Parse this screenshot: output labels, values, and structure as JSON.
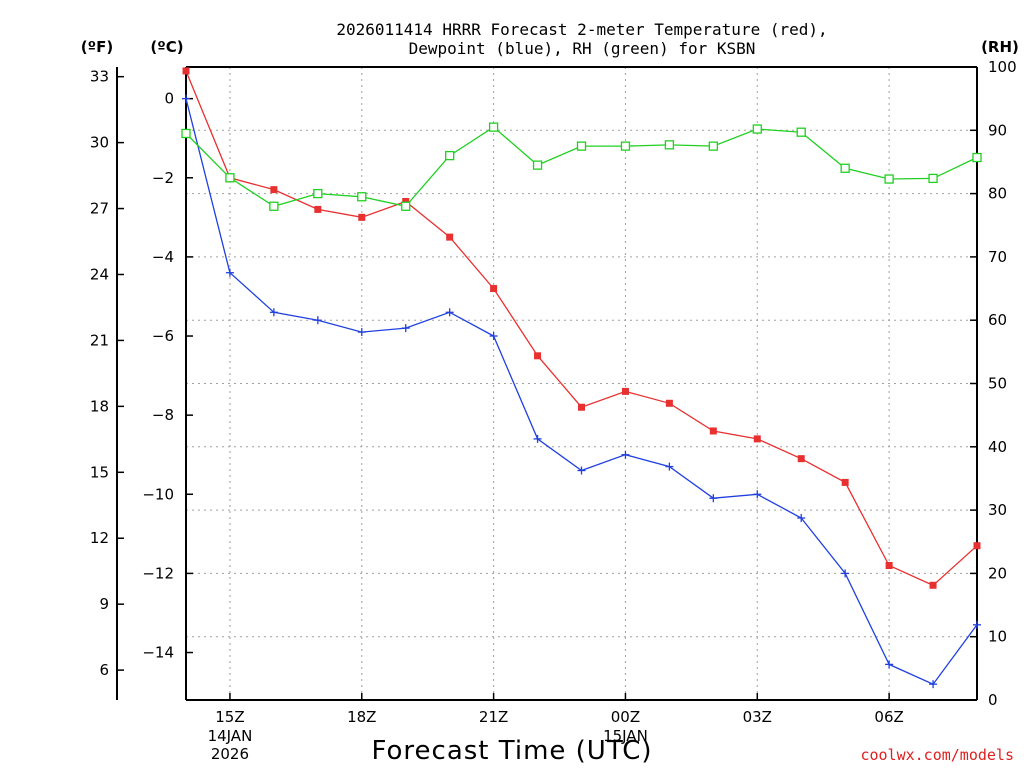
{
  "chart_data": {
    "type": "line",
    "title_lines": [
      "2026011414 HRRR Forecast 2-meter Temperature (red),",
      "Dewpoint (blue), RH (green) for KSBN"
    ],
    "unit_labels": {
      "fahrenheit": "(ºF)",
      "celsius": "(ºC)",
      "rh": "(RH)"
    },
    "xlabel": "Forecast Time (UTC)",
    "credit": "coolwx.com/models",
    "x_hours": [
      14,
      15,
      16,
      17,
      18,
      19,
      20,
      21,
      22,
      23,
      24,
      25,
      26,
      27,
      28,
      29,
      30,
      31,
      32
    ],
    "xlim": [
      14,
      32
    ],
    "x_ticks": [
      {
        "hour": 15,
        "label": "15Z",
        "date1": "14JAN",
        "date2": "2026"
      },
      {
        "hour": 18,
        "label": "18Z"
      },
      {
        "hour": 21,
        "label": "21Z"
      },
      {
        "hour": 24,
        "label": "00Z",
        "date1": "15JAN"
      },
      {
        "hour": 27,
        "label": "03Z"
      },
      {
        "hour": 30,
        "label": "06Z"
      }
    ],
    "celsius_axis": {
      "range": [
        -15.2,
        0.8
      ],
      "ticks": [
        0,
        -2,
        -4,
        -6,
        -8,
        -10,
        -12,
        -14
      ],
      "tick_labels": [
        "0",
        "−2",
        "−4",
        "−6",
        "−8",
        "−10",
        "−12",
        "−14"
      ]
    },
    "fahrenheit_axis": {
      "ticks": [
        33,
        30,
        27,
        24,
        21,
        18,
        15,
        12,
        9,
        6
      ],
      "tick_labels": [
        "33",
        "30",
        "27",
        "24",
        "21",
        "18",
        "15",
        "12",
        "9",
        "6"
      ]
    },
    "rh_axis": {
      "range": [
        0,
        100
      ],
      "ticks": [
        0,
        10,
        20,
        30,
        40,
        50,
        60,
        70,
        80,
        90,
        100
      ],
      "tick_labels": [
        "0",
        "10",
        "20",
        "30",
        "40",
        "50",
        "60",
        "70",
        "80",
        "90",
        "100"
      ]
    },
    "series": [
      {
        "name": "Temperature",
        "axis": "celsius",
        "color": "#e83030",
        "marker": "filled-square",
        "values": [
          0.7,
          -2.0,
          -2.3,
          -2.8,
          -3.0,
          -2.6,
          -3.5,
          -4.8,
          -6.5,
          -7.8,
          -7.4,
          -7.7,
          -8.4,
          -8.6,
          -9.1,
          -9.7,
          -11.8,
          -12.3,
          -11.3
        ]
      },
      {
        "name": "Dewpoint",
        "axis": "celsius",
        "color": "#2040e0",
        "marker": "plus",
        "values": [
          0.0,
          -4.4,
          -5.4,
          -5.6,
          -5.9,
          -5.8,
          -5.4,
          -6.0,
          -8.6,
          -9.4,
          -9.0,
          -9.3,
          -10.1,
          -10.0,
          -10.6,
          -12.0,
          -14.3,
          -14.8,
          -13.3
        ]
      },
      {
        "name": "RH",
        "axis": "rh",
        "color": "#20d020",
        "marker": "open-square",
        "values": [
          89.5,
          82.5,
          78.0,
          80.0,
          79.5,
          78.0,
          86.0,
          90.5,
          84.5,
          87.5,
          87.5,
          87.7,
          87.5,
          90.2,
          89.7,
          84.0,
          82.3,
          82.4,
          85.7
        ]
      }
    ]
  }
}
